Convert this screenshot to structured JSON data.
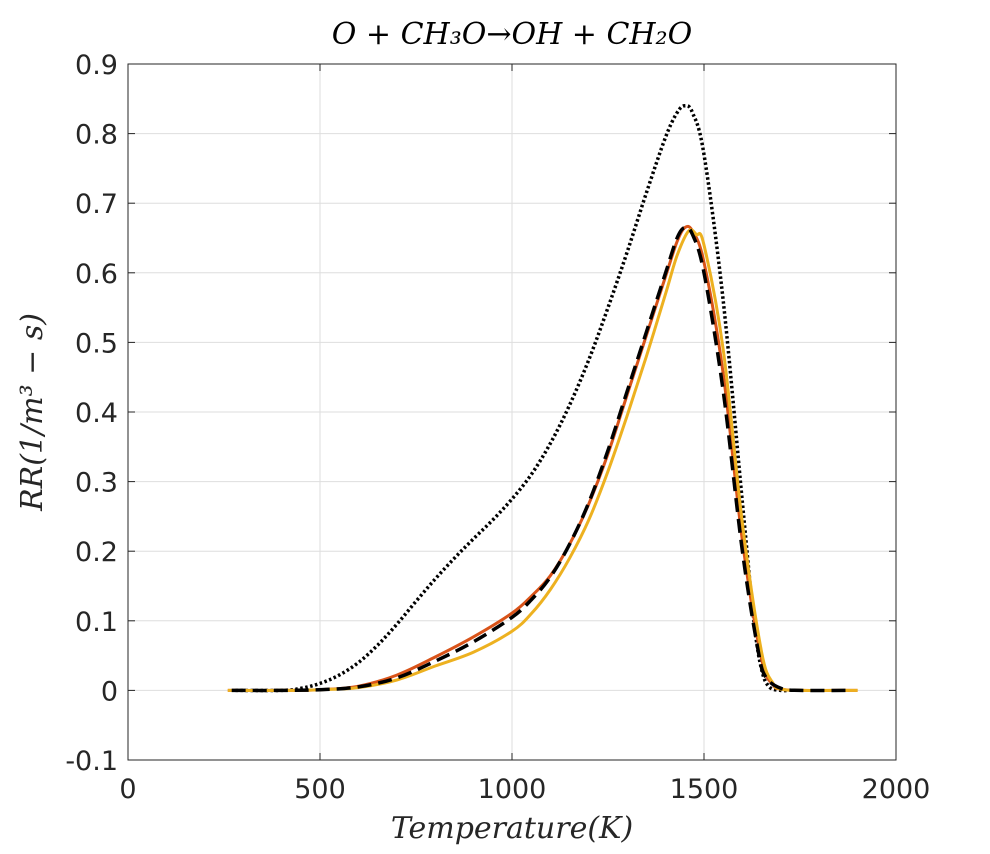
{
  "chart_data": {
    "type": "line",
    "title": "O + CH₃O→OH + CH₂O",
    "xlabel": "Temperature(K)",
    "ylabel": "RR(1/m³ − s)",
    "xlim": [
      0,
      2000
    ],
    "ylim": [
      -0.1,
      0.9
    ],
    "xticks": [
      0,
      500,
      1000,
      1500,
      2000
    ],
    "yticks": [
      -0.1,
      0,
      0.1,
      0.2,
      0.3,
      0.4,
      0.5,
      0.6,
      0.7,
      0.8,
      0.9
    ],
    "xtick_labels": [
      "0",
      "500",
      "1000",
      "1500",
      "2000"
    ],
    "ytick_labels": [
      "-0.1",
      "0",
      "0.1",
      "0.2",
      "0.3",
      "0.4",
      "0.5",
      "0.6",
      "0.7",
      "0.8",
      "0.9"
    ],
    "grid": true,
    "legend": "none",
    "series": [
      {
        "color": "#000000",
        "style": "dotted",
        "x": [
          280,
          400,
          450,
          500,
          550,
          600,
          650,
          700,
          750,
          800,
          850,
          900,
          950,
          1000,
          1050,
          1100,
          1150,
          1200,
          1250,
          1300,
          1350,
          1400,
          1430,
          1450,
          1470,
          1500,
          1550,
          1600,
          1630,
          1650,
          1670,
          1700,
          1720
        ],
        "y": [
          0,
          0,
          0.003,
          0.01,
          0.022,
          0.04,
          0.065,
          0.095,
          0.128,
          0.16,
          0.19,
          0.218,
          0.245,
          0.275,
          0.31,
          0.355,
          0.41,
          0.475,
          0.55,
          0.63,
          0.715,
          0.795,
          0.83,
          0.84,
          0.83,
          0.77,
          0.56,
          0.27,
          0.1,
          0.03,
          0.005,
          0,
          0
        ]
      },
      {
        "color": "#D95319",
        "style": "solid",
        "x": [
          260,
          400,
          500,
          600,
          700,
          800,
          900,
          1000,
          1050,
          1100,
          1150,
          1200,
          1250,
          1300,
          1350,
          1400,
          1430,
          1450,
          1470,
          1500,
          1550,
          1600,
          1650,
          1680,
          1700,
          1750,
          1900
        ],
        "y": [
          0,
          0,
          0.001,
          0.006,
          0.022,
          0.048,
          0.077,
          0.111,
          0.135,
          0.165,
          0.21,
          0.268,
          0.34,
          0.425,
          0.51,
          0.595,
          0.645,
          0.665,
          0.66,
          0.615,
          0.455,
          0.215,
          0.045,
          0.008,
          0.002,
          0,
          0
        ]
      },
      {
        "color": "#EDB120",
        "style": "solid",
        "x": [
          260,
          400,
          500,
          600,
          700,
          800,
          900,
          1000,
          1050,
          1100,
          1150,
          1200,
          1250,
          1300,
          1350,
          1400,
          1430,
          1460,
          1480,
          1500,
          1550,
          1600,
          1650,
          1680,
          1700,
          1750,
          1900
        ],
        "y": [
          0,
          0,
          0.001,
          0.004,
          0.015,
          0.035,
          0.055,
          0.085,
          0.11,
          0.145,
          0.19,
          0.245,
          0.315,
          0.395,
          0.48,
          0.57,
          0.625,
          0.66,
          0.655,
          0.64,
          0.49,
          0.24,
          0.055,
          0.01,
          0.002,
          0,
          0
        ]
      },
      {
        "color": "#000000",
        "style": "dashed",
        "x": [
          270,
          400,
          500,
          600,
          700,
          800,
          900,
          1000,
          1050,
          1100,
          1150,
          1200,
          1250,
          1300,
          1350,
          1400,
          1430,
          1450,
          1470,
          1500,
          1550,
          1600,
          1640,
          1660,
          1700,
          1750,
          1880
        ],
        "y": [
          0,
          0,
          0.001,
          0.005,
          0.018,
          0.042,
          0.07,
          0.105,
          0.13,
          0.163,
          0.21,
          0.27,
          0.345,
          0.43,
          0.515,
          0.6,
          0.65,
          0.665,
          0.655,
          0.6,
          0.43,
          0.2,
          0.06,
          0.02,
          0.003,
          0,
          0
        ]
      }
    ]
  }
}
